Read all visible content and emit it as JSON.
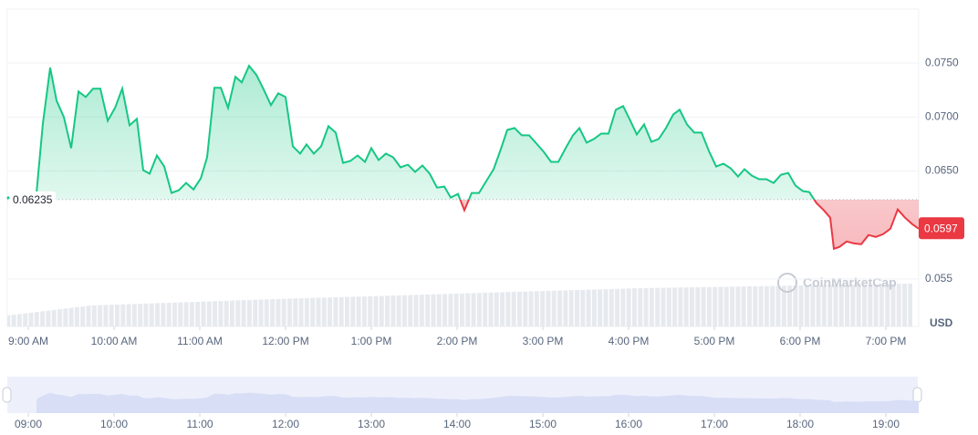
{
  "chart_data": {
    "type": "line",
    "currency": "USD",
    "watermark": "CoinMarketCap",
    "baseline": 0.06235,
    "current_price": 0.0597,
    "xlim": [
      8.755,
      19.383
    ],
    "ylim": [
      0.0506,
      0.08
    ],
    "xticks": [
      {
        "value": 9,
        "label": "9:00 AM"
      },
      {
        "value": 10,
        "label": "10:00 AM"
      },
      {
        "value": 11,
        "label": "11:00 AM"
      },
      {
        "value": 12,
        "label": "12:00 PM"
      },
      {
        "value": 13,
        "label": "1:00 PM"
      },
      {
        "value": 14,
        "label": "2:00 PM"
      },
      {
        "value": 15,
        "label": "3:00 PM"
      },
      {
        "value": 16,
        "label": "4:00 PM"
      },
      {
        "value": 17,
        "label": "5:00 PM"
      },
      {
        "value": 18,
        "label": "6:00 PM"
      },
      {
        "value": 19,
        "label": "7:00 PM"
      }
    ],
    "yticks": [
      {
        "value": 0.075,
        "label": "0.0750"
      },
      {
        "value": 0.07,
        "label": "0.0700"
      },
      {
        "value": 0.065,
        "label": "0.0650"
      },
      {
        "value": 0.055,
        "label": "0.055"
      }
    ],
    "grid": true,
    "up_color": "#16c784",
    "down_color": "#ea3943",
    "x": [
      9.096,
      9.17,
      9.255,
      9.33,
      9.415,
      9.5,
      9.585,
      9.67,
      9.755,
      9.84,
      9.926,
      10.011,
      10.096,
      10.181,
      10.266,
      10.34,
      10.415,
      10.5,
      10.585,
      10.67,
      10.755,
      10.84,
      10.926,
      11.011,
      11.085,
      11.17,
      11.245,
      11.33,
      11.415,
      11.489,
      11.574,
      11.66,
      11.745,
      11.83,
      11.915,
      12.0,
      12.085,
      12.17,
      12.245,
      12.33,
      12.415,
      12.5,
      12.585,
      12.67,
      12.755,
      12.84,
      12.926,
      13.0,
      13.085,
      13.17,
      13.255,
      13.34,
      13.426,
      13.511,
      13.596,
      13.681,
      13.766,
      13.851,
      13.926,
      14.011,
      14.085,
      14.17,
      14.255,
      14.34,
      14.426,
      14.511,
      14.585,
      14.67,
      14.755,
      14.84,
      14.926,
      15.011,
      15.096,
      15.181,
      15.266,
      15.351,
      15.426,
      15.511,
      15.596,
      15.681,
      15.766,
      15.851,
      15.936,
      16.011,
      16.096,
      16.181,
      16.266,
      16.351,
      16.436,
      16.521,
      16.596,
      16.681,
      16.766,
      16.851,
      16.936,
      17.021,
      17.106,
      17.191,
      17.277,
      17.351,
      17.436,
      17.521,
      17.606,
      17.691,
      17.777,
      17.862,
      17.947,
      18.032,
      18.106,
      18.191,
      18.277,
      18.351,
      18.394,
      18.457,
      18.543,
      18.628,
      18.713,
      18.798,
      18.883,
      18.968,
      19.053,
      19.138,
      19.223,
      19.309,
      19.383
    ],
    "values": [
      0.06305,
      0.06941,
      0.07458,
      0.07153,
      0.07,
      0.06712,
      0.07237,
      0.07186,
      0.07263,
      0.07263,
      0.06966,
      0.07085,
      0.07263,
      0.06924,
      0.06983,
      0.06508,
      0.06475,
      0.06644,
      0.06542,
      0.06297,
      0.06322,
      0.0639,
      0.0633,
      0.06432,
      0.06627,
      0.07271,
      0.07271,
      0.07085,
      0.07373,
      0.07322,
      0.07475,
      0.0739,
      0.07254,
      0.0711,
      0.0722,
      0.07186,
      0.06729,
      0.06661,
      0.06746,
      0.06661,
      0.06729,
      0.06915,
      0.06856,
      0.06576,
      0.06593,
      0.06644,
      0.06585,
      0.06712,
      0.06602,
      0.06661,
      0.06627,
      0.06534,
      0.06559,
      0.06492,
      0.06551,
      0.06475,
      0.06347,
      0.06356,
      0.06254,
      0.06288,
      0.06136,
      0.06297,
      0.06297,
      0.06407,
      0.06517,
      0.06703,
      0.06881,
      0.06898,
      0.06831,
      0.06831,
      0.06754,
      0.06678,
      0.06585,
      0.06585,
      0.06712,
      0.06831,
      0.06898,
      0.06763,
      0.06797,
      0.06847,
      0.06847,
      0.07068,
      0.07102,
      0.06983,
      0.06839,
      0.06932,
      0.06771,
      0.06797,
      0.06898,
      0.07025,
      0.07068,
      0.06932,
      0.06856,
      0.06856,
      0.06686,
      0.06542,
      0.06568,
      0.06525,
      0.06449,
      0.06517,
      0.06458,
      0.06424,
      0.06424,
      0.0639,
      0.06466,
      0.06483,
      0.06364,
      0.06314,
      0.06305,
      0.06203,
      0.06136,
      0.06068,
      0.0578,
      0.05797,
      0.05847,
      0.0583,
      0.05822,
      0.05907,
      0.0589,
      0.05915,
      0.05966,
      0.06144,
      0.06068,
      0.06008,
      0.05966
    ],
    "navigator": {
      "xticks": [
        {
          "value": 9,
          "label": "09:00"
        },
        {
          "value": 10,
          "label": "10:00"
        },
        {
          "value": 11,
          "label": "11:00"
        },
        {
          "value": 12,
          "label": "12:00"
        },
        {
          "value": 13,
          "label": "13:00"
        },
        {
          "value": 14,
          "label": "14:00"
        },
        {
          "value": 15,
          "label": "15:00"
        },
        {
          "value": 16,
          "label": "16:00"
        },
        {
          "value": 17,
          "label": "17:00"
        },
        {
          "value": 18,
          "label": "18:00"
        },
        {
          "value": 19,
          "label": "19:00"
        }
      ]
    }
  }
}
